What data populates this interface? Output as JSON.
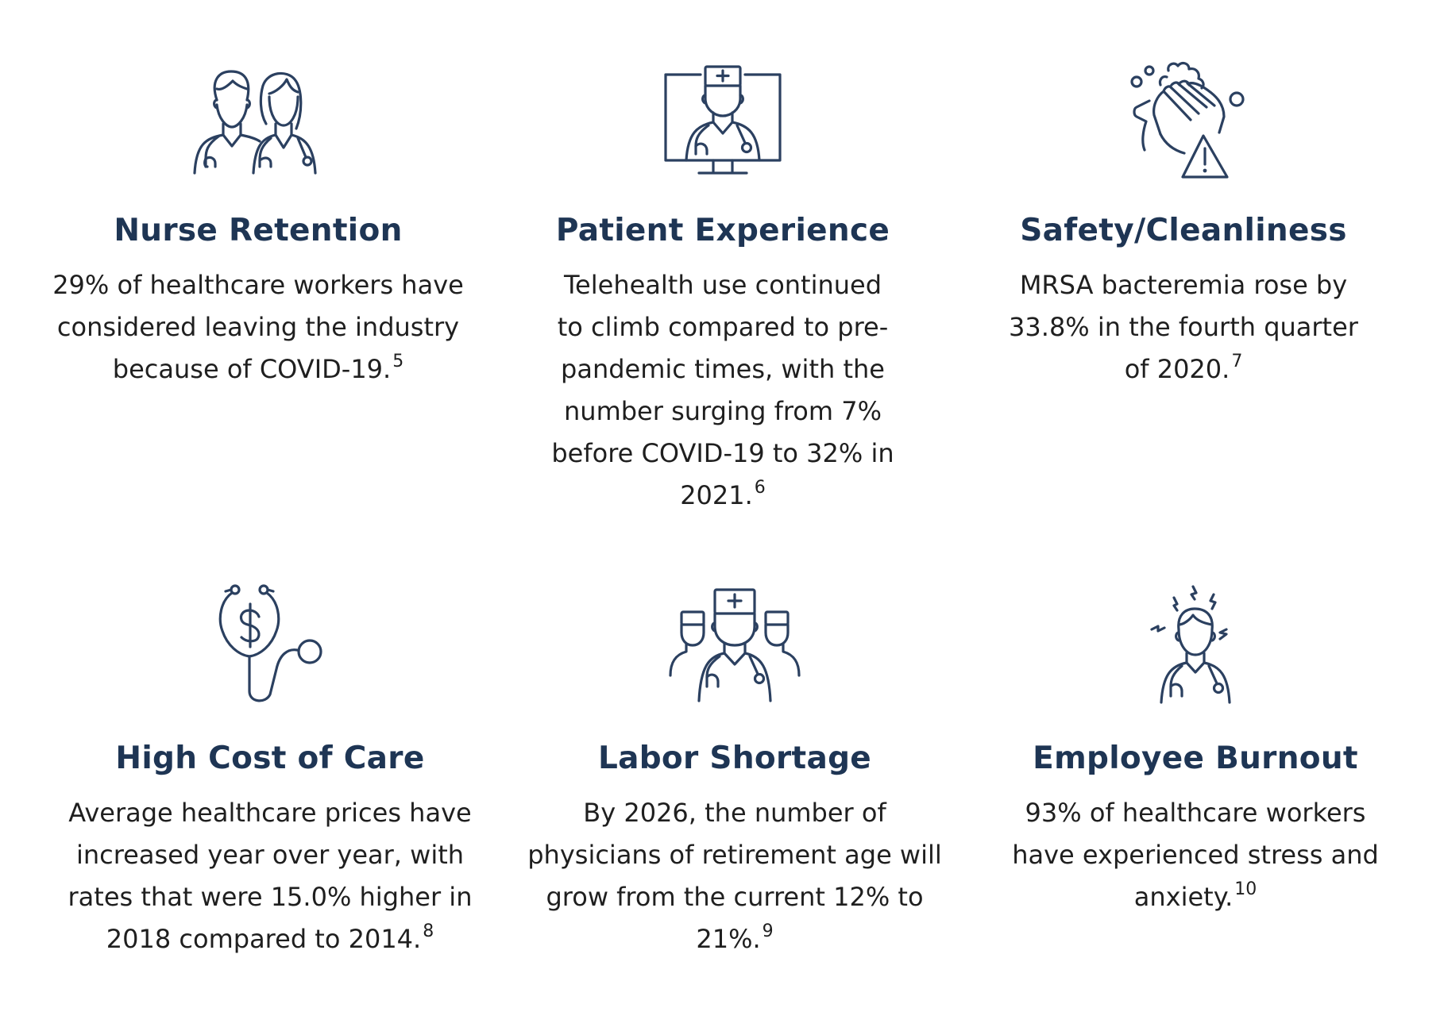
{
  "colors": {
    "heading": "#1e3554",
    "body_text": "#1f1f1f",
    "icon_stroke": "#2b4060",
    "background": "#ffffff"
  },
  "cards": [
    {
      "icon": "nurses-icon",
      "title": "Nurse Retention",
      "text": "29% of healthcare workers have considered leaving the industry because of COVID-19.",
      "footnote": "5"
    },
    {
      "icon": "telehealth-icon",
      "title": "Patient Experience",
      "text": "Telehealth use continued to climb compared to pre-pandemic times, with the number surging from 7% before COVID-19 to 32% in 2021.",
      "footnote": "6"
    },
    {
      "icon": "hand-washing-warning-icon",
      "title": "Safety/Cleanliness",
      "text": "MRSA bacteremia rose by 33.8% in the fourth quarter of 2020.",
      "footnote": "7"
    },
    {
      "icon": "stethoscope-dollar-icon",
      "title": "High Cost of Care",
      "text": "Average healthcare prices have increased year over year, with rates that were 15.0% higher in 2018 compared to 2014.",
      "footnote": "8"
    },
    {
      "icon": "medical-team-icon",
      "title": "Labor Shortage",
      "text": "By 2026, the number of physicians of retirement age will grow from the current 12% to 21%.",
      "footnote": "9"
    },
    {
      "icon": "stressed-doctor-icon",
      "title": "Employee Burnout",
      "text": "93% of healthcare workers have experienced stress and anxiety.",
      "footnote": "10"
    }
  ]
}
